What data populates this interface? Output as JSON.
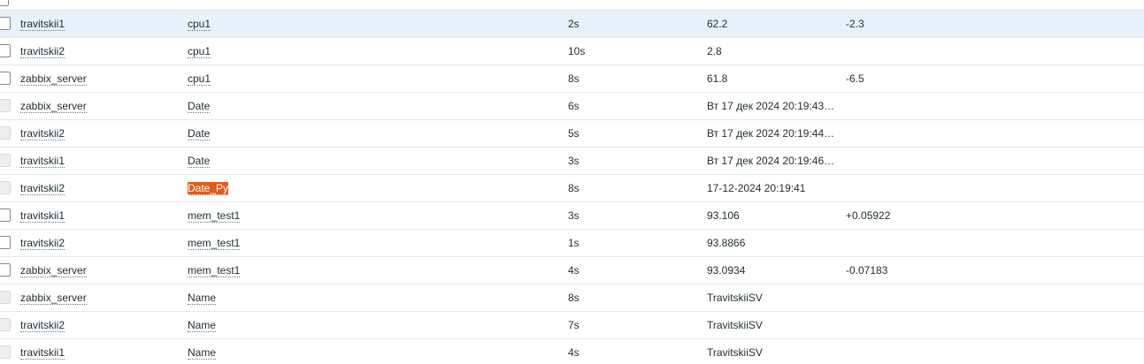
{
  "rows": [
    {
      "host": "travitskii1",
      "item": "cpu1",
      "interval": "2s",
      "value": "62.2",
      "change": "-2.3",
      "checkbox": "enabled",
      "selected": true
    },
    {
      "host": "travitskii2",
      "item": "cpu1",
      "interval": "10s",
      "value": "2.8",
      "change": "",
      "checkbox": "enabled"
    },
    {
      "host": "zabbix_server",
      "item": "cpu1",
      "interval": "8s",
      "value": "61.8",
      "change": "-6.5",
      "checkbox": "enabled"
    },
    {
      "host": "zabbix_server",
      "item": "Date",
      "interval": "6s",
      "value": "Вт 17 дек 2024 20:19:43…",
      "change": "",
      "checkbox": "disabled"
    },
    {
      "host": "travitskii2",
      "item": "Date",
      "interval": "5s",
      "value": "Вт 17 дек 2024 20:19:44…",
      "change": "",
      "checkbox": "disabled"
    },
    {
      "host": "travitskii1",
      "item": "Date",
      "interval": "3s",
      "value": "Вт 17 дек 2024 20:19:46…",
      "change": "",
      "checkbox": "disabled"
    },
    {
      "host": "travitskii2",
      "item": "Date_Py",
      "interval": "8s",
      "value": "17-12-2024 20:19:41",
      "change": "",
      "checkbox": "disabled",
      "item_highlighted": true
    },
    {
      "host": "travitskii1",
      "item": "mem_test1",
      "interval": "3s",
      "value": "93.106",
      "change": "+0.05922",
      "checkbox": "enabled"
    },
    {
      "host": "travitskii2",
      "item": "mem_test1",
      "interval": "1s",
      "value": "93.8866",
      "change": "",
      "checkbox": "enabled"
    },
    {
      "host": "zabbix_server",
      "item": "mem_test1",
      "interval": "4s",
      "value": "93.0934",
      "change": "-0.07183",
      "checkbox": "enabled"
    },
    {
      "host": "zabbix_server",
      "item": "Name",
      "interval": "8s",
      "value": "TravitskiiSV",
      "change": "",
      "checkbox": "disabled"
    },
    {
      "host": "travitskii2",
      "item": "Name",
      "interval": "7s",
      "value": "TravitskiiSV",
      "change": "",
      "checkbox": "disabled"
    },
    {
      "host": "travitskii1",
      "item": "Name",
      "interval": "4s",
      "value": "TravitskiiSV",
      "change": "",
      "checkbox": "disabled"
    }
  ],
  "colors": {
    "selected_row": "#e6f1fb",
    "highlight": "#e45a1a"
  }
}
